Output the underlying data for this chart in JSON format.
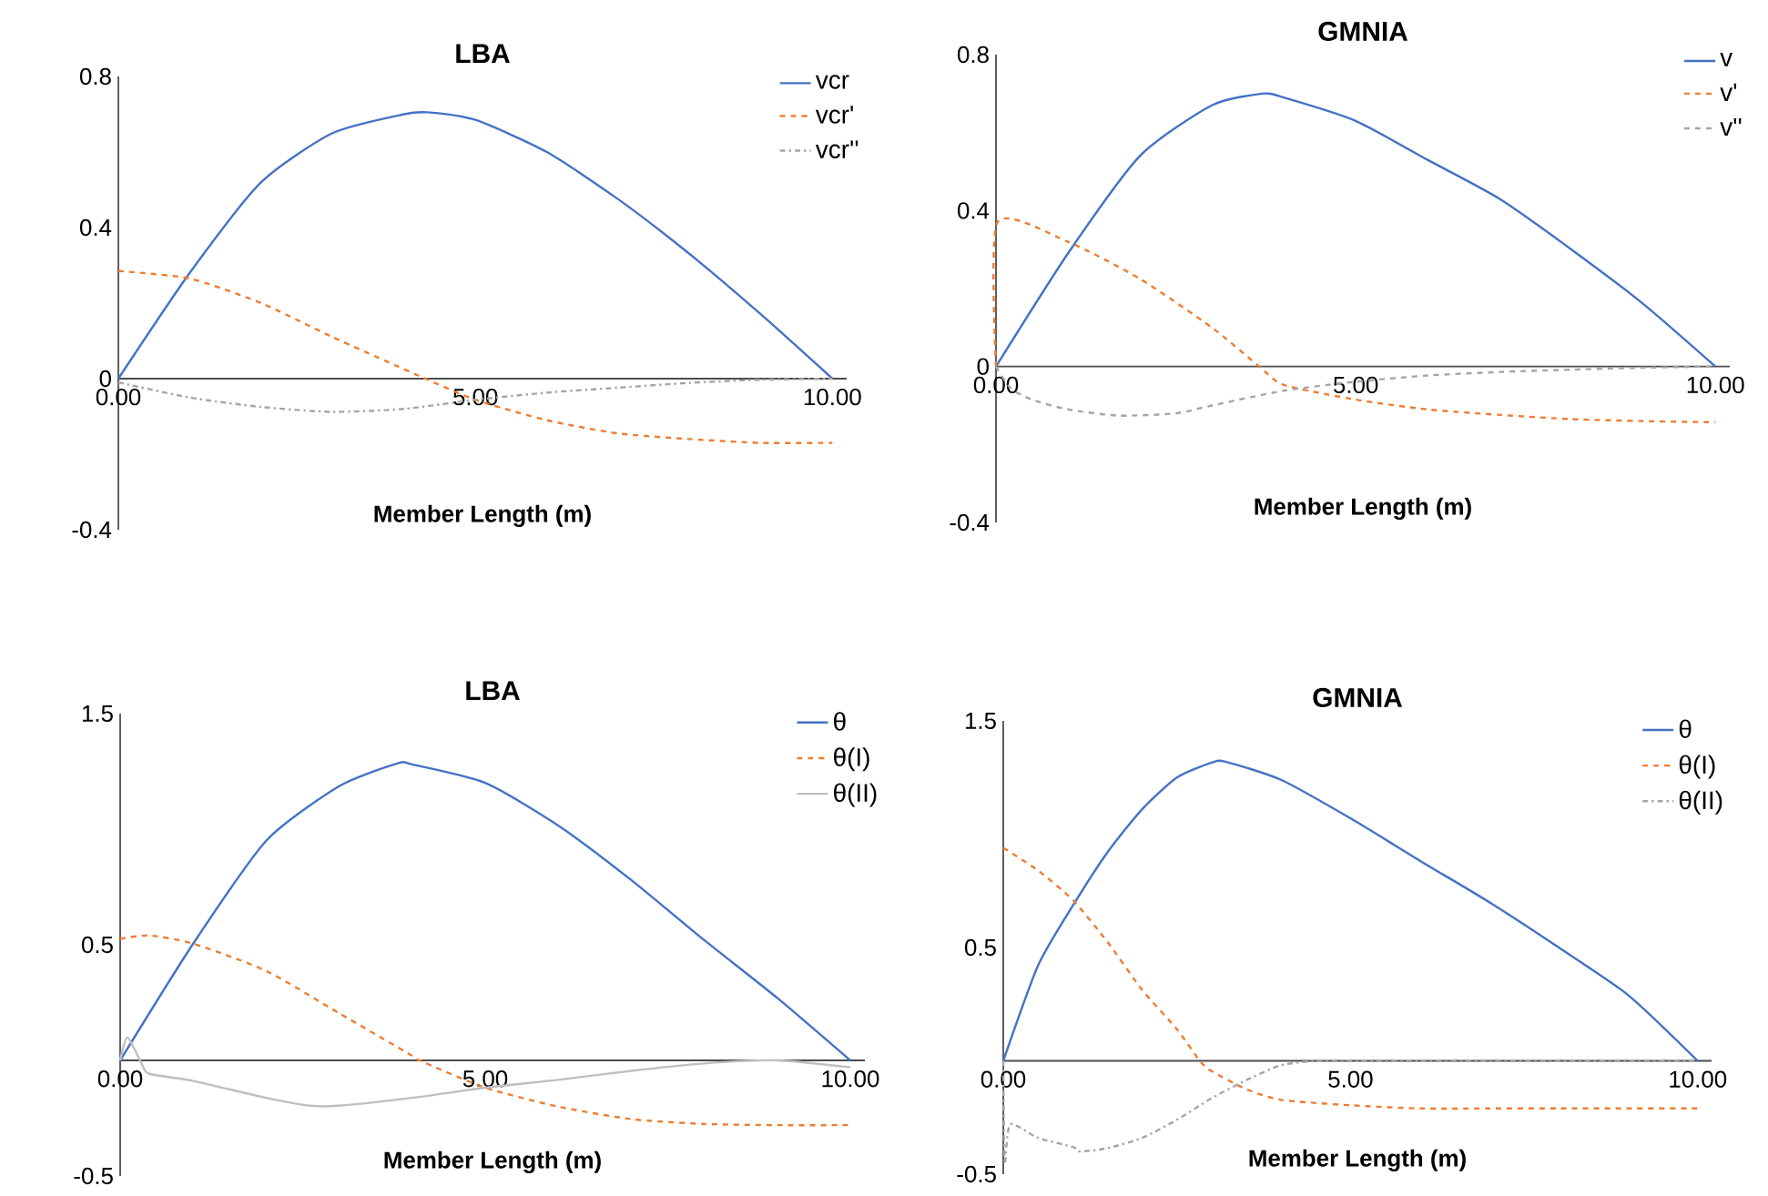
{
  "chart_data": [
    {
      "type": "line",
      "title": "LBA",
      "xlabel": "Member Length (m)",
      "xlim": [
        0,
        10.2
      ],
      "xticks": [
        {
          "value": 0,
          "label": "0.00"
        },
        {
          "value": 5,
          "label": "5.00"
        },
        {
          "value": 10,
          "label": "10.00"
        }
      ],
      "ylim": [
        -0.4,
        0.8
      ],
      "yticks": [
        -0.4,
        0,
        0.4,
        0.8
      ],
      "legend": "top right",
      "series": [
        {
          "name": "vcr",
          "color": "#4472c4",
          "line_style": "solid",
          "x": [
            0,
            1,
            2,
            3,
            4,
            4.33,
            5,
            6,
            7,
            8,
            9,
            10
          ],
          "values": [
            0,
            0.28,
            0.52,
            0.65,
            0.7,
            0.705,
            0.685,
            0.6,
            0.475,
            0.33,
            0.17,
            0
          ]
        },
        {
          "name": "vcr'",
          "color": "#ed7d31",
          "line_style": "dashed",
          "x": [
            0,
            1,
            2,
            3,
            4,
            4.3,
            5,
            6,
            7,
            8,
            9,
            10
          ],
          "values": [
            0.285,
            0.265,
            0.2,
            0.11,
            0.025,
            0,
            -0.056,
            -0.11,
            -0.145,
            -0.16,
            -0.17,
            -0.17
          ]
        },
        {
          "name": "vcr''",
          "color": "#a5a5a5",
          "line_style": "dashdot",
          "x": [
            0,
            1,
            2,
            3,
            4,
            5,
            6,
            7,
            8,
            9,
            10
          ],
          "values": [
            -0.01,
            -0.05,
            -0.075,
            -0.088,
            -0.08,
            -0.056,
            -0.037,
            -0.024,
            -0.011,
            -0.003,
            0
          ]
        }
      ]
    },
    {
      "type": "line",
      "title": "GMNIA",
      "xlabel": "Member Length (m)",
      "xlim": [
        0,
        10.2
      ],
      "xticks": [
        {
          "value": 0,
          "label": "0.00"
        },
        {
          "value": 5,
          "label": "5.00"
        },
        {
          "value": 10,
          "label": "10.00"
        }
      ],
      "ylim": [
        -0.4,
        0.8
      ],
      "yticks": [
        -0.4,
        0,
        0.4,
        0.8
      ],
      "legend": "top right",
      "series": [
        {
          "name": "v",
          "color": "#4472c4",
          "line_style": "solid",
          "x": [
            0,
            1,
            2,
            3,
            3.7,
            4,
            5,
            6,
            7,
            8,
            9,
            10
          ],
          "values": [
            0,
            0.29,
            0.54,
            0.67,
            0.7,
            0.69,
            0.63,
            0.53,
            0.43,
            0.3,
            0.16,
            0
          ]
        },
        {
          "name": "v'",
          "color": "#ed7d31",
          "line_style": "dashed",
          "x": [
            0,
            0.02,
            1,
            2,
            3,
            3.66,
            4,
            5,
            6,
            7,
            8,
            9,
            10
          ],
          "values": [
            0,
            0.37,
            0.32,
            0.225,
            0.1,
            0,
            -0.047,
            -0.085,
            -0.11,
            -0.124,
            -0.135,
            -0.14,
            -0.143
          ]
        },
        {
          "name": "v''",
          "color": "#a5a5a5",
          "line_style": "dashed",
          "x": [
            0,
            0.2,
            0.5,
            1,
            1.7,
            2.5,
            3,
            4,
            5,
            6,
            7,
            8,
            9,
            10
          ],
          "values": [
            0,
            -0.055,
            -0.085,
            -0.11,
            -0.126,
            -0.12,
            -0.1,
            -0.062,
            -0.039,
            -0.023,
            -0.014,
            -0.008,
            -0.003,
            0
          ]
        }
      ]
    },
    {
      "type": "line",
      "title": "LBA",
      "xlabel": "Member Length (m)",
      "xlim": [
        0,
        10.2
      ],
      "xticks": [
        {
          "value": 0,
          "label": "0.00"
        },
        {
          "value": 5,
          "label": "5.00"
        },
        {
          "value": 10,
          "label": "10.00"
        }
      ],
      "ylim": [
        -0.5,
        1.5
      ],
      "yticks": [
        -0.5,
        0.5,
        1.5
      ],
      "legend": "top right",
      "series": [
        {
          "name": "θ",
          "color": "#4472c4",
          "line_style": "solid",
          "x": [
            0,
            1,
            2,
            3,
            3.8,
            4,
            5,
            6,
            7,
            8,
            9,
            10
          ],
          "values": [
            0,
            0.505,
            0.95,
            1.186,
            1.285,
            1.28,
            1.2,
            1.016,
            0.78,
            0.52,
            0.27,
            0
          ]
        },
        {
          "name": "θ(I)",
          "color": "#ed7d31",
          "line_style": "dashed",
          "x": [
            0,
            0.4,
            1,
            2,
            3,
            4,
            4.1,
            5,
            6,
            7,
            8,
            9,
            10
          ],
          "values": [
            0.526,
            0.54,
            0.505,
            0.387,
            0.204,
            0.02,
            0,
            -0.118,
            -0.2,
            -0.254,
            -0.275,
            -0.28,
            -0.28
          ]
        },
        {
          "name": "θ(II)",
          "color": "#bfbfbf",
          "line_style": "solid",
          "x": [
            0,
            0.1,
            0.3,
            0.4,
            1,
            2,
            2.6,
            3,
            4,
            5,
            6,
            7,
            8,
            9,
            10
          ],
          "values": [
            0,
            0.1,
            -0.018,
            -0.058,
            -0.089,
            -0.162,
            -0.196,
            -0.196,
            -0.162,
            -0.118,
            -0.084,
            -0.045,
            -0.013,
            0,
            -0.03
          ]
        }
      ]
    },
    {
      "type": "line",
      "title": "GMNIA",
      "xlabel": "Member Length (m)",
      "xlim": [
        0,
        10.2
      ],
      "xticks": [
        {
          "value": 0,
          "label": "0.00"
        },
        {
          "value": 5,
          "label": "5.00"
        },
        {
          "value": 10,
          "label": "10.00"
        }
      ],
      "ylim": [
        -0.5,
        1.5
      ],
      "yticks": [
        -0.5,
        0.5,
        1.5
      ],
      "legend": "top right",
      "series": [
        {
          "name": "θ",
          "color": "#4472c4",
          "line_style": "solid",
          "x": [
            0,
            0.5,
            1,
            1.5,
            2,
            2.5,
            3,
            3.2,
            4,
            5,
            6,
            7,
            8,
            9,
            10
          ],
          "values": [
            0,
            0.42,
            0.684,
            0.92,
            1.11,
            1.25,
            1.316,
            1.32,
            1.24,
            1.07,
            0.883,
            0.7,
            0.5,
            0.29,
            0
          ]
        },
        {
          "name": "θ(I)",
          "color": "#ed7d31",
          "line_style": "dashed",
          "x": [
            0,
            0.5,
            1,
            1.5,
            2,
            2.5,
            2.83,
            3,
            3.5,
            4,
            5,
            6,
            7,
            8,
            9,
            10
          ],
          "values": [
            0.94,
            0.84,
            0.71,
            0.525,
            0.313,
            0.14,
            0,
            -0.045,
            -0.125,
            -0.172,
            -0.196,
            -0.21,
            -0.21,
            -0.21,
            -0.21,
            -0.21
          ]
        },
        {
          "name": "θ(II)",
          "color": "#a5a5a5",
          "line_style": "dashdot",
          "x": [
            0,
            0.02,
            0.1,
            0.5,
            1,
            1.1,
            1.5,
            2,
            2.5,
            3,
            3.5,
            4,
            4.5,
            5,
            6,
            7,
            8,
            9,
            10
          ],
          "values": [
            0,
            -0.45,
            -0.28,
            -0.34,
            -0.38,
            -0.4,
            -0.385,
            -0.34,
            -0.26,
            -0.165,
            -0.085,
            -0.019,
            0,
            0,
            0,
            0,
            0,
            0,
            0
          ]
        }
      ]
    }
  ]
}
